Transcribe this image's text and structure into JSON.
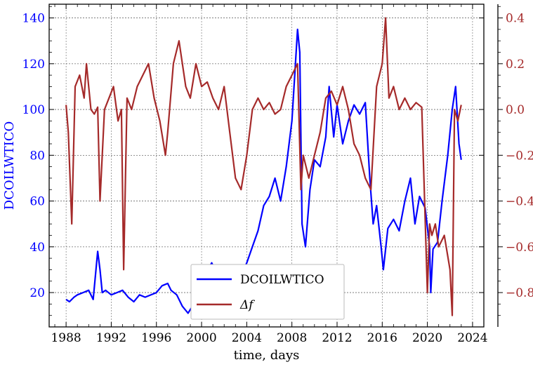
{
  "chart_data": {
    "type": "line",
    "xlabel": "time, days",
    "ylabel": "DCOILWTICO",
    "y2label": "",
    "xlim": [
      1986.5,
      2025.0
    ],
    "ylim": [
      5,
      146
    ],
    "y2lim": [
      -0.95,
      0.46
    ],
    "x_ticks": [
      1988,
      1992,
      1996,
      2000,
      2004,
      2008,
      2012,
      2016,
      2020,
      2024
    ],
    "y_ticks": [
      20,
      40,
      60,
      80,
      100,
      120,
      140
    ],
    "y2_ticks": [
      -0.8,
      -0.6,
      -0.4,
      -0.2,
      0.0,
      0.2,
      0.4
    ],
    "y2_tick_labels": [
      "−0.8",
      "−0.6",
      "−0.4",
      "−0.2",
      "0.0",
      "0.2",
      "0.4"
    ],
    "grid": true,
    "legend_position": "bottom-center",
    "series": [
      {
        "name": "DCOILWTICO",
        "axis": "left",
        "color": "#0000ff",
        "x": [
          1988.0,
          1988.3,
          1988.7,
          1989.0,
          1989.5,
          1990.0,
          1990.4,
          1990.8,
          1991.0,
          1991.2,
          1991.5,
          1992.0,
          1992.5,
          1993.0,
          1993.5,
          1994.0,
          1994.5,
          1995.0,
          1996.0,
          1996.5,
          1997.0,
          1997.3,
          1997.8,
          1998.3,
          1998.8,
          1999.3,
          1999.8,
          2000.3,
          2000.9,
          2001.5,
          2001.9,
          2002.5,
          2003.0,
          2003.5,
          2004.0,
          2004.5,
          2005.0,
          2005.5,
          2006.0,
          2006.5,
          2007.0,
          2007.5,
          2008.0,
          2008.5,
          2008.7,
          2008.9,
          2009.2,
          2009.6,
          2010.0,
          2010.5,
          2011.0,
          2011.3,
          2011.7,
          2012.0,
          2012.5,
          2013.0,
          2013.5,
          2014.0,
          2014.5,
          2014.9,
          2015.2,
          2015.5,
          2015.9,
          2016.1,
          2016.5,
          2017.0,
          2017.5,
          2018.0,
          2018.5,
          2018.9,
          2019.3,
          2019.8,
          2020.2,
          2020.3,
          2020.5,
          2020.9,
          2021.3,
          2021.8,
          2022.2,
          2022.5,
          2022.8,
          2023.0
        ],
        "values": [
          17,
          16,
          18,
          19,
          20,
          21,
          17,
          38,
          30,
          20,
          21,
          19,
          20,
          21,
          18,
          16,
          19,
          18,
          20,
          23,
          24,
          21,
          19,
          14,
          11,
          15,
          22,
          28,
          33,
          27,
          19,
          25,
          30,
          28,
          33,
          40,
          47,
          58,
          62,
          70,
          60,
          75,
          95,
          135,
          125,
          50,
          40,
          65,
          78,
          75,
          88,
          110,
          88,
          102,
          85,
          95,
          102,
          98,
          103,
          70,
          50,
          58,
          40,
          30,
          48,
          52,
          47,
          60,
          70,
          50,
          62,
          57,
          40,
          20,
          39,
          42,
          60,
          80,
          100,
          110,
          85,
          78
        ]
      },
      {
        "name": "Δf",
        "axis": "right",
        "color": "#a52a2a",
        "x": [
          1988.0,
          1988.2,
          1988.5,
          1988.8,
          1989.2,
          1989.6,
          1989.8,
          1990.2,
          1990.5,
          1990.8,
          1991.0,
          1991.4,
          1991.8,
          1992.2,
          1992.6,
          1992.9,
          1993.1,
          1993.4,
          1993.8,
          1994.3,
          1994.8,
          1995.3,
          1995.8,
          1996.3,
          1996.8,
          1997.0,
          1997.5,
          1998.0,
          1998.6,
          1999.0,
          1999.5,
          2000.0,
          2000.5,
          2001.0,
          2001.5,
          2002.0,
          2002.5,
          2003.0,
          2003.5,
          2004.0,
          2004.5,
          2005.0,
          2005.5,
          2006.0,
          2006.5,
          2007.0,
          2007.5,
          2008.0,
          2008.5,
          2008.8,
          2009.0,
          2009.5,
          2010.0,
          2010.5,
          2011.0,
          2011.5,
          2012.0,
          2012.5,
          2013.0,
          2013.5,
          2014.0,
          2014.5,
          2015.0,
          2015.5,
          2016.0,
          2016.3,
          2016.6,
          2017.0,
          2017.5,
          2018.0,
          2018.5,
          2019.0,
          2019.5,
          2020.0,
          2020.2,
          2020.4,
          2020.7,
          2021.0,
          2021.5,
          2022.0,
          2022.2,
          2022.4,
          2022.7,
          2023.0
        ],
        "values": [
          0.02,
          -0.1,
          -0.5,
          0.1,
          0.15,
          0.05,
          0.2,
          0.0,
          -0.02,
          0.01,
          -0.4,
          0.0,
          0.05,
          0.1,
          -0.05,
          0.0,
          -0.7,
          0.05,
          0.0,
          0.1,
          0.15,
          0.2,
          0.05,
          -0.05,
          -0.2,
          -0.1,
          0.2,
          0.3,
          0.1,
          0.05,
          0.2,
          0.1,
          0.12,
          0.05,
          0.0,
          0.1,
          -0.1,
          -0.3,
          -0.35,
          -0.2,
          0.0,
          0.05,
          0.0,
          0.03,
          -0.02,
          0.0,
          0.1,
          0.15,
          0.2,
          -0.35,
          -0.2,
          -0.3,
          -0.2,
          -0.1,
          0.05,
          0.08,
          0.02,
          0.1,
          0.0,
          -0.15,
          -0.2,
          -0.3,
          -0.35,
          0.1,
          0.2,
          0.4,
          0.05,
          0.1,
          0.0,
          0.05,
          0.0,
          0.03,
          0.01,
          -0.8,
          -0.5,
          -0.55,
          -0.5,
          -0.6,
          -0.55,
          -0.7,
          -0.9,
          0.0,
          -0.05,
          0.02
        ]
      }
    ]
  }
}
